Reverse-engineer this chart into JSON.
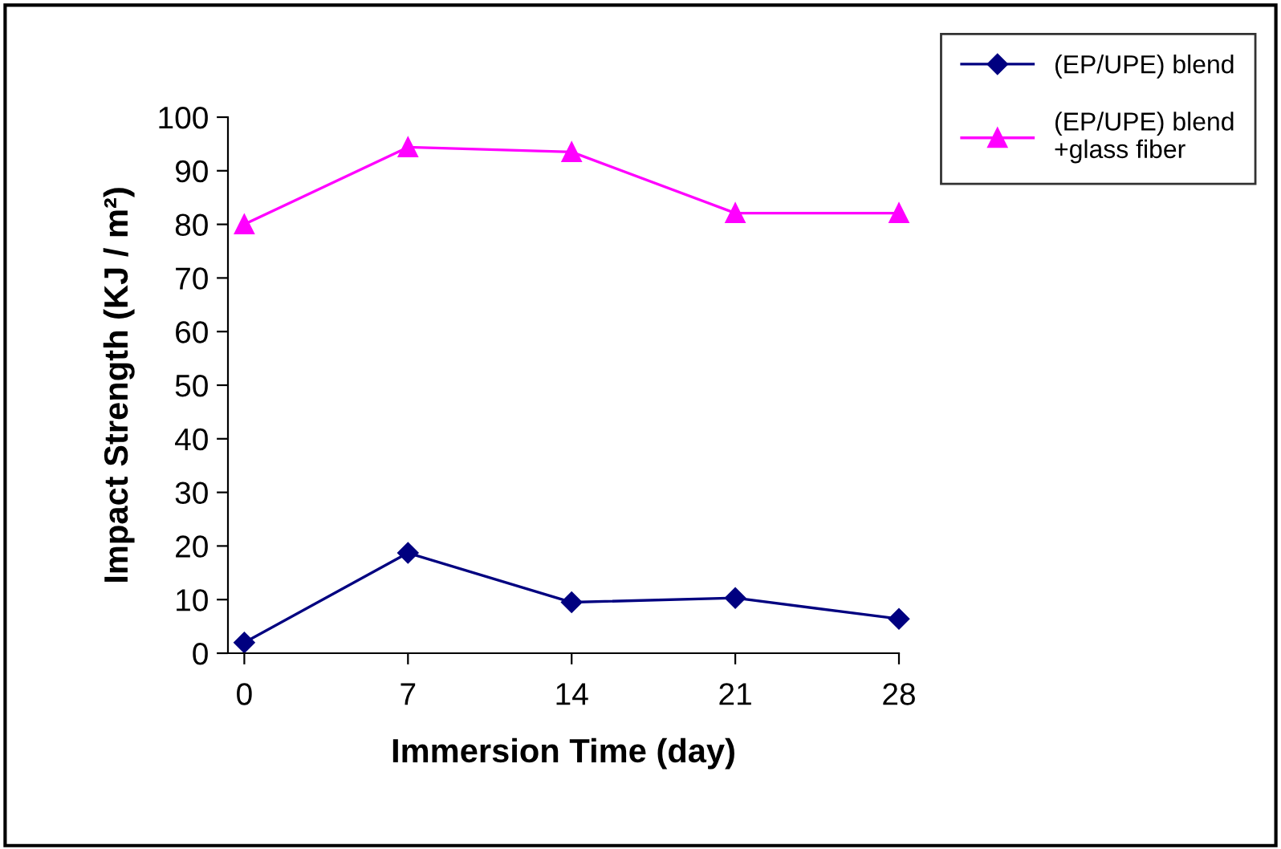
{
  "chart_data": {
    "type": "line",
    "xlabel": "Immersion Time (day)",
    "ylabel": "Impact Strength (KJ / m²)",
    "x": [
      0,
      7,
      14,
      21,
      28
    ],
    "series": [
      {
        "name": "(EP/UPE) blend",
        "color": "#000080",
        "marker": "diamond",
        "values": [
          2,
          18.7,
          9.5,
          10.3,
          6.4
        ]
      },
      {
        "name": "(EP/UPE) blend\n+glass fiber",
        "color": "#ff00ff",
        "marker": "triangle",
        "values": [
          80,
          94.4,
          93.5,
          82.1,
          82.1
        ]
      }
    ],
    "xlim": [
      -0.7,
      28
    ],
    "xticks": [
      0,
      7,
      14,
      21,
      28
    ],
    "ylim": [
      0,
      100
    ],
    "yticks": [
      0,
      10,
      20,
      30,
      40,
      50,
      60,
      70,
      80,
      90,
      100
    ],
    "grid": false,
    "legend": "top right",
    "line_style": "solid"
  }
}
